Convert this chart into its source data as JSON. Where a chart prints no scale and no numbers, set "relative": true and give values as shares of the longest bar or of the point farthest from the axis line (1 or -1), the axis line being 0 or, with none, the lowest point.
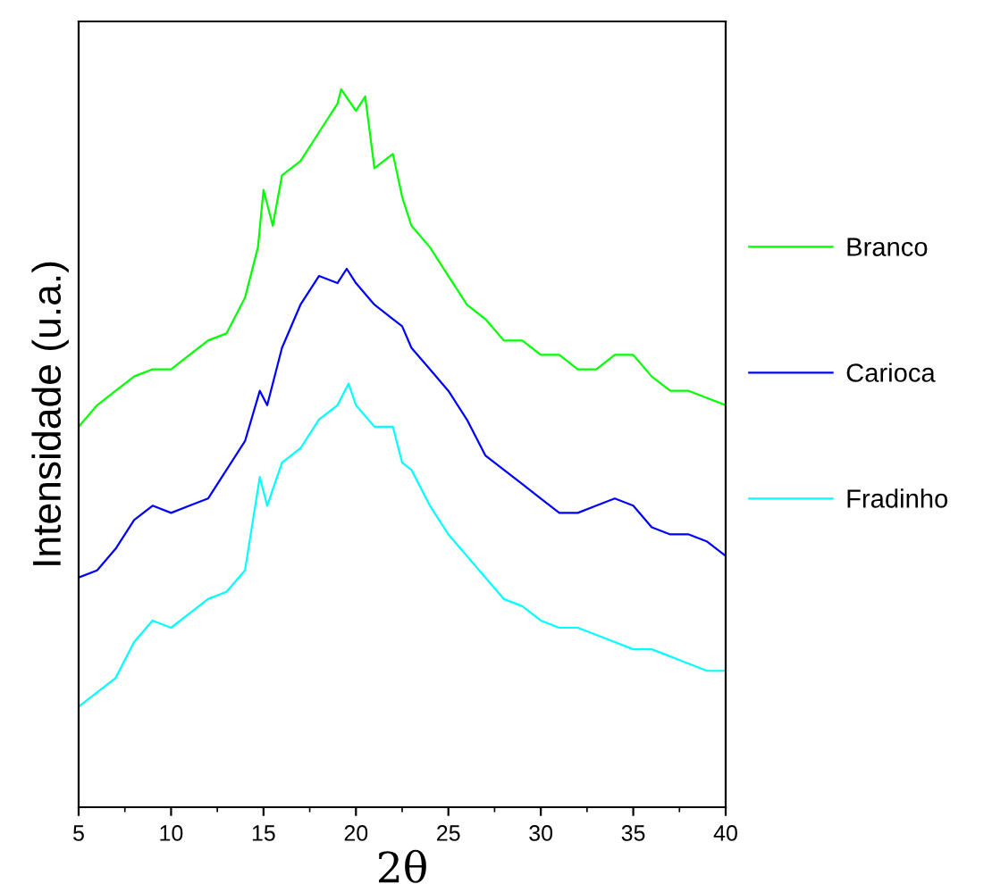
{
  "chart_data": {
    "type": "line",
    "xlabel": "2θ",
    "ylabel": "Intensidade (u.a.)",
    "relative": true,
    "xlim": [
      5,
      40
    ],
    "xticks": [
      5,
      10,
      15,
      20,
      25,
      30,
      35,
      40
    ],
    "grid": false,
    "legend": "right",
    "tick_labels": "x",
    "marker": "none",
    "line_style": "solid",
    "series": [
      {
        "name": "Branco",
        "color": "#00ff00",
        "x": [
          5,
          6,
          7,
          8,
          9,
          10,
          11,
          12,
          13,
          14,
          14.7,
          15,
          15.5,
          16,
          17,
          18,
          19,
          19.2,
          20,
          20.5,
          21,
          22,
          22.5,
          23,
          24,
          25,
          26,
          27,
          28,
          29,
          30,
          31,
          32,
          33,
          34,
          35,
          36,
          37,
          38,
          39,
          40
        ],
        "values": [
          0.53,
          0.56,
          0.58,
          0.6,
          0.61,
          0.61,
          0.63,
          0.65,
          0.66,
          0.71,
          0.78,
          0.86,
          0.81,
          0.88,
          0.9,
          0.94,
          0.98,
          1.0,
          0.97,
          0.99,
          0.89,
          0.91,
          0.85,
          0.81,
          0.78,
          0.74,
          0.7,
          0.68,
          0.65,
          0.65,
          0.63,
          0.63,
          0.61,
          0.61,
          0.63,
          0.63,
          0.6,
          0.58,
          0.58,
          0.57,
          0.56
        ]
      },
      {
        "name": "Carioca",
        "color": "#0000ff",
        "x": [
          5,
          6,
          7,
          8,
          9,
          10,
          11,
          12,
          13,
          14,
          14.8,
          15.2,
          16,
          17,
          18,
          19,
          19.5,
          20,
          21,
          22,
          22.5,
          23,
          24,
          25,
          26,
          27,
          28,
          29,
          30,
          31,
          32,
          33,
          34,
          35,
          36,
          37,
          38,
          39,
          40
        ],
        "values": [
          0.32,
          0.33,
          0.36,
          0.4,
          0.42,
          0.41,
          0.42,
          0.43,
          0.47,
          0.51,
          0.58,
          0.56,
          0.64,
          0.7,
          0.74,
          0.73,
          0.75,
          0.73,
          0.7,
          0.68,
          0.67,
          0.64,
          0.61,
          0.58,
          0.54,
          0.49,
          0.47,
          0.45,
          0.43,
          0.41,
          0.41,
          0.42,
          0.43,
          0.42,
          0.39,
          0.38,
          0.38,
          0.37,
          0.35
        ]
      },
      {
        "name": "Fradinho",
        "color": "#00ffff",
        "x": [
          5,
          6,
          7,
          8,
          9,
          10,
          11,
          12,
          13,
          14,
          14.8,
          15.2,
          16,
          17,
          18,
          19,
          19.6,
          20,
          21,
          22,
          22.5,
          23,
          24,
          25,
          26,
          27,
          28,
          29,
          30,
          31,
          32,
          33,
          34,
          35,
          36,
          37,
          38,
          39,
          40
        ],
        "values": [
          0.14,
          0.16,
          0.18,
          0.23,
          0.26,
          0.25,
          0.27,
          0.29,
          0.3,
          0.33,
          0.46,
          0.42,
          0.48,
          0.5,
          0.54,
          0.56,
          0.59,
          0.56,
          0.53,
          0.53,
          0.48,
          0.47,
          0.42,
          0.38,
          0.35,
          0.32,
          0.29,
          0.28,
          0.26,
          0.25,
          0.25,
          0.24,
          0.23,
          0.22,
          0.22,
          0.21,
          0.2,
          0.19,
          0.19
        ]
      }
    ]
  }
}
